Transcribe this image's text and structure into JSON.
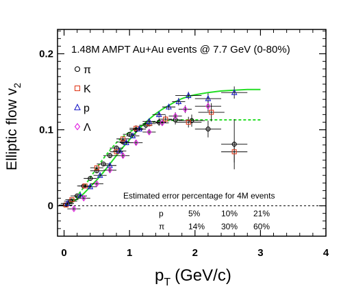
{
  "chart_data": {
    "type": "scatter",
    "title": "1.48M AMPT Au+Au events @ 7.7 GeV (0-80%)",
    "xlabel": "p",
    "xlabel_sub": "T",
    "xlabel_unit": "(GeV/c)",
    "ylabel": "Elliptic flow v",
    "ylabel_sub": "2",
    "xlim": [
      -0.1,
      4.0
    ],
    "ylim": [
      -0.04,
      0.232
    ],
    "xticks": [
      {
        "v": 0,
        "label": "0"
      },
      {
        "v": 1,
        "label": "1"
      },
      {
        "v": 2,
        "label": "2"
      },
      {
        "v": 3,
        "label": "3"
      },
      {
        "v": 4,
        "label": "4"
      }
    ],
    "yticks": [
      {
        "v": 0,
        "label": "0"
      },
      {
        "v": 0.1,
        "label": "0.1"
      },
      {
        "v": 0.2,
        "label": "0.2"
      }
    ],
    "legend_position": "top-left",
    "series": [
      {
        "name": "π",
        "marker": "circle",
        "color": "#000000",
        "points": [
          [
            0.02,
            0.001
          ],
          [
            0.1,
            0.006
          ],
          [
            0.2,
            0.013
          ],
          [
            0.3,
            0.026
          ],
          [
            0.4,
            0.036
          ],
          [
            0.5,
            0.046
          ],
          [
            0.6,
            0.055
          ],
          [
            0.7,
            0.066
          ],
          [
            0.8,
            0.076
          ],
          [
            0.9,
            0.084
          ],
          [
            1.0,
            0.094
          ],
          [
            1.1,
            0.1
          ],
          [
            1.25,
            0.106
          ],
          [
            1.45,
            0.11
          ],
          [
            1.7,
            0.113
          ],
          [
            1.95,
            0.112
          ],
          [
            2.2,
            0.101
          ],
          [
            2.6,
            0.081
          ]
        ],
        "yerr": [
          0.002,
          0.002,
          0.002,
          0.002,
          0.002,
          0.002,
          0.002,
          0.003,
          0.003,
          0.003,
          0.003,
          0.004,
          0.004,
          0.005,
          0.006,
          0.008,
          0.011,
          0.033
        ]
      },
      {
        "name": "K",
        "marker": "square",
        "color": "#e03c1e",
        "points": [
          [
            0.03,
            0.001
          ],
          [
            0.12,
            0.008
          ],
          [
            0.32,
            0.026
          ],
          [
            0.5,
            0.05
          ],
          [
            0.8,
            0.071
          ],
          [
            0.9,
            0.088
          ],
          [
            1.1,
            0.102
          ],
          [
            1.3,
            0.108
          ],
          [
            1.55,
            0.114
          ],
          [
            1.9,
            0.11
          ],
          [
            2.25,
            0.123
          ],
          [
            2.6,
            0.071
          ]
        ],
        "yerr": [
          0.002,
          0.002,
          0.002,
          0.003,
          0.003,
          0.003,
          0.004,
          0.004,
          0.005,
          0.007,
          0.012,
          0.014
        ]
      },
      {
        "name": "p",
        "marker": "triangle",
        "color": "#1e1ec8",
        "points": [
          [
            0.05,
            0.003
          ],
          [
            0.25,
            0.013
          ],
          [
            0.4,
            0.025
          ],
          [
            0.55,
            0.04
          ],
          [
            0.7,
            0.053
          ],
          [
            0.85,
            0.072
          ],
          [
            0.95,
            0.083
          ],
          [
            1.05,
            0.092
          ],
          [
            1.15,
            0.101
          ],
          [
            1.3,
            0.111
          ],
          [
            1.45,
            0.12
          ],
          [
            1.6,
            0.13
          ],
          [
            1.75,
            0.137
          ],
          [
            1.9,
            0.145
          ],
          [
            2.2,
            0.141
          ],
          [
            2.6,
            0.149
          ]
        ],
        "yerr": [
          0.002,
          0.002,
          0.002,
          0.002,
          0.002,
          0.003,
          0.003,
          0.003,
          0.003,
          0.004,
          0.004,
          0.004,
          0.005,
          0.005,
          0.007,
          0.008
        ]
      },
      {
        "name": "Λ",
        "marker": "diamond",
        "color": "#e01ee0",
        "points": [
          [
            0.15,
            -0.004
          ],
          [
            0.3,
            0.01
          ],
          [
            0.5,
            0.029
          ],
          [
            0.7,
            0.047
          ],
          [
            0.9,
            0.066
          ],
          [
            1.1,
            0.083
          ],
          [
            1.3,
            0.097
          ],
          [
            1.5,
            0.109
          ],
          [
            1.7,
            0.118
          ],
          [
            1.85,
            0.127
          ],
          [
            2.2,
            0.131
          ]
        ],
        "yerr": [
          0.002,
          0.002,
          0.002,
          0.003,
          0.003,
          0.003,
          0.004,
          0.004,
          0.005,
          0.005,
          0.007
        ]
      }
    ],
    "fits": [
      {
        "style": "solid",
        "color": "#22dd22",
        "points": [
          [
            0.0,
            0.0
          ],
          [
            0.1,
            0.0035
          ],
          [
            0.2,
            0.009
          ],
          [
            0.3,
            0.016
          ],
          [
            0.4,
            0.025
          ],
          [
            0.5,
            0.034
          ],
          [
            0.6,
            0.044
          ],
          [
            0.7,
            0.055
          ],
          [
            0.8,
            0.066
          ],
          [
            0.9,
            0.077
          ],
          [
            1.0,
            0.087
          ],
          [
            1.1,
            0.097
          ],
          [
            1.2,
            0.106
          ],
          [
            1.3,
            0.114
          ],
          [
            1.4,
            0.121
          ],
          [
            1.5,
            0.127
          ],
          [
            1.6,
            0.132
          ],
          [
            1.7,
            0.137
          ],
          [
            1.8,
            0.141
          ],
          [
            1.9,
            0.144
          ],
          [
            2.0,
            0.146
          ],
          [
            2.2,
            0.149
          ],
          [
            2.4,
            0.151
          ],
          [
            2.6,
            0.152
          ],
          [
            2.8,
            0.153
          ],
          [
            3.0,
            0.153
          ]
        ]
      },
      {
        "style": "dashed",
        "color": "#22dd22",
        "points": [
          [
            0.0,
            0.0
          ],
          [
            0.1,
            0.005
          ],
          [
            0.2,
            0.013
          ],
          [
            0.3,
            0.024
          ],
          [
            0.4,
            0.037
          ],
          [
            0.5,
            0.05
          ],
          [
            0.6,
            0.062
          ],
          [
            0.7,
            0.073
          ],
          [
            0.8,
            0.083
          ],
          [
            0.9,
            0.091
          ],
          [
            1.0,
            0.097
          ],
          [
            1.1,
            0.102
          ],
          [
            1.2,
            0.106
          ],
          [
            1.3,
            0.109
          ],
          [
            1.4,
            0.111
          ],
          [
            1.6,
            0.112
          ],
          [
            1.8,
            0.113
          ],
          [
            2.0,
            0.113
          ],
          [
            2.4,
            0.113
          ],
          [
            2.8,
            0.113
          ],
          [
            3.0,
            0.113
          ]
        ]
      }
    ],
    "error_table": {
      "title": "Estimated error percentage for 4M events",
      "rows": [
        {
          "label": "p",
          "values": [
            "5%",
            "10%",
            "21%"
          ]
        },
        {
          "label": "π",
          "values": [
            "14%",
            "30%",
            "60%"
          ]
        }
      ]
    }
  }
}
